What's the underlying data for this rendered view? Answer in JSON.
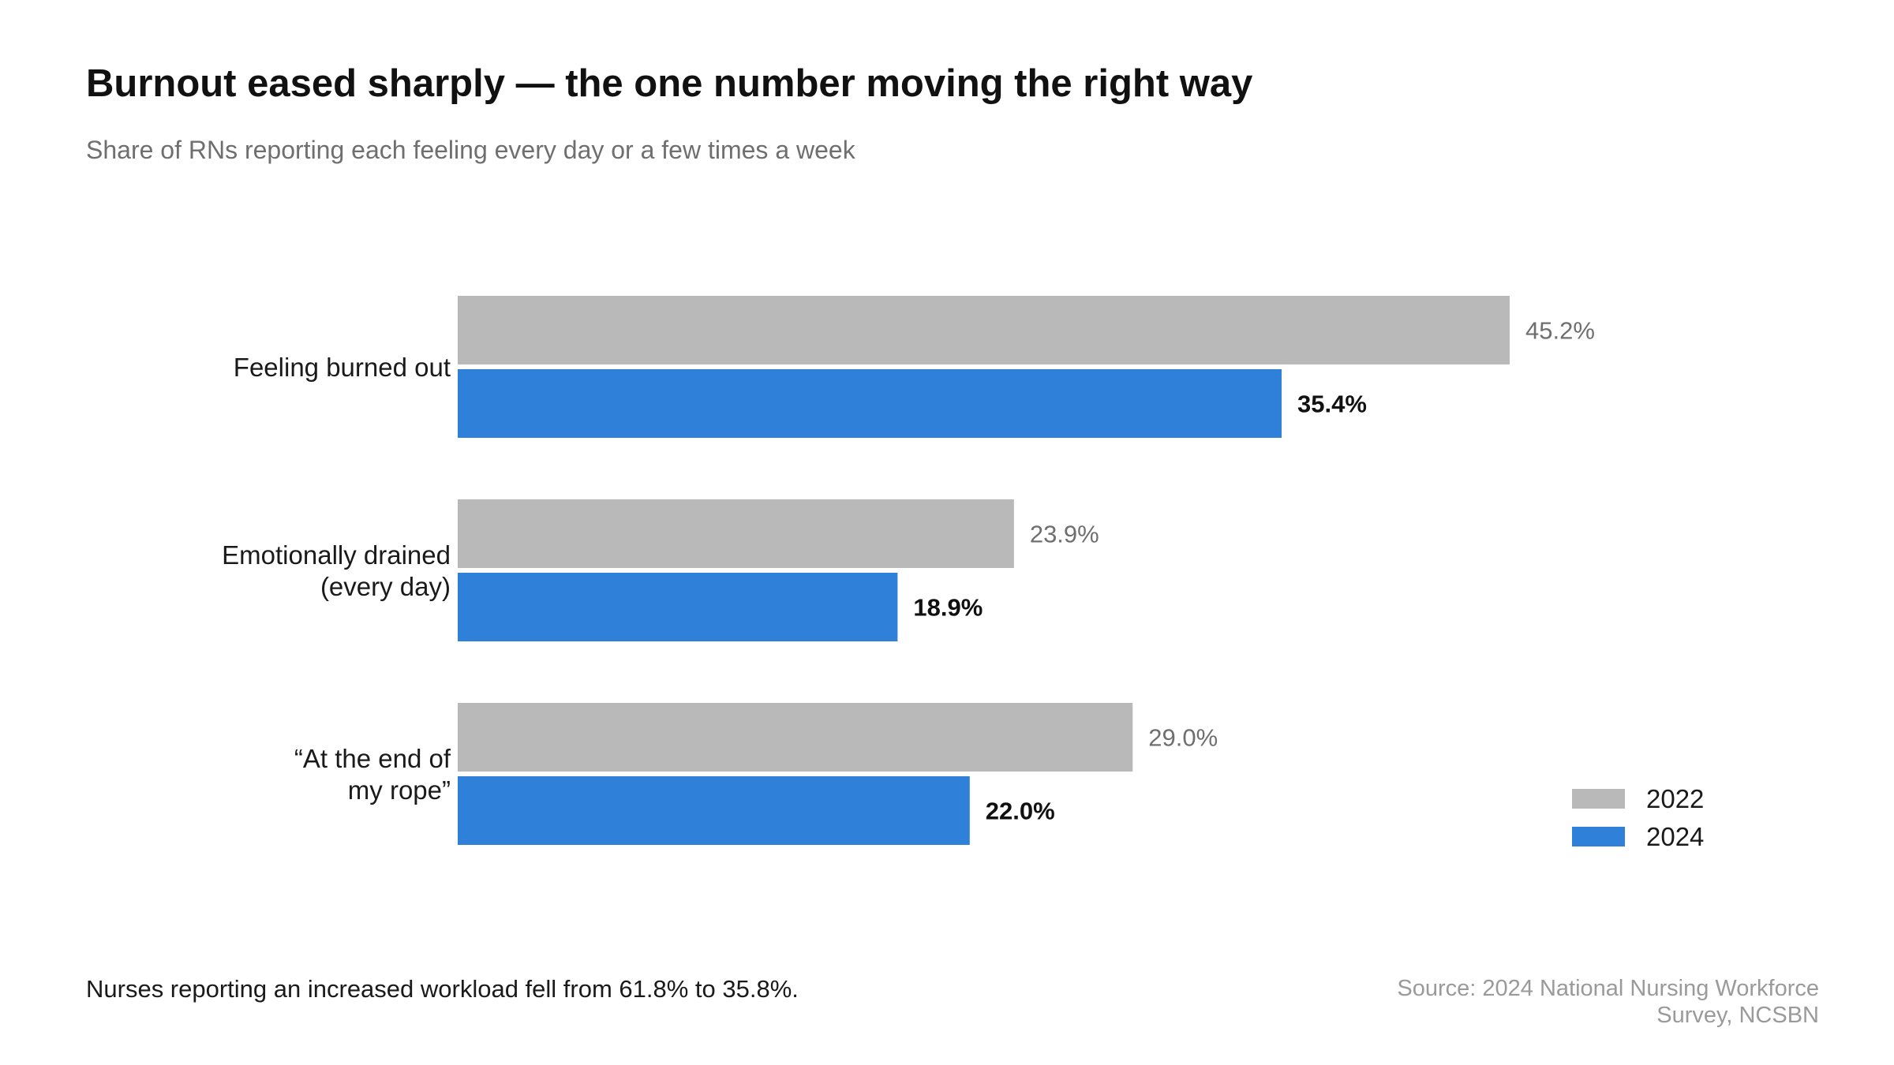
{
  "title": "Burnout eased sharply — the one number moving the right way",
  "subtitle": "Share of RNs reporting each feeling every day or a few times a week",
  "chart_data": {
    "type": "bar",
    "orientation": "horizontal",
    "categories": [
      [
        "Feeling burned out"
      ],
      [
        "Emotionally drained",
        "(every day)"
      ],
      [
        "“At the end of",
        "my rope”"
      ]
    ],
    "series": [
      {
        "name": "2022",
        "values": [
          45.2,
          23.9,
          29.0
        ],
        "labels": [
          "45.2%",
          "23.9%",
          "29.0%"
        ],
        "color": "#b9b9b9"
      },
      {
        "name": "2024",
        "values": [
          35.4,
          18.9,
          22.0
        ],
        "labels": [
          "35.4%",
          "18.9%",
          "22.0%"
        ],
        "color": "#2f80d9"
      }
    ],
    "xlim": [
      0,
      45.2
    ],
    "grid": false,
    "legend_position": "bottom-right"
  },
  "footnote": "Nurses reporting an increased workload fell from 61.8% to 35.8%.",
  "source": "Source: 2024 National Nursing Workforce Survey, NCSBN"
}
